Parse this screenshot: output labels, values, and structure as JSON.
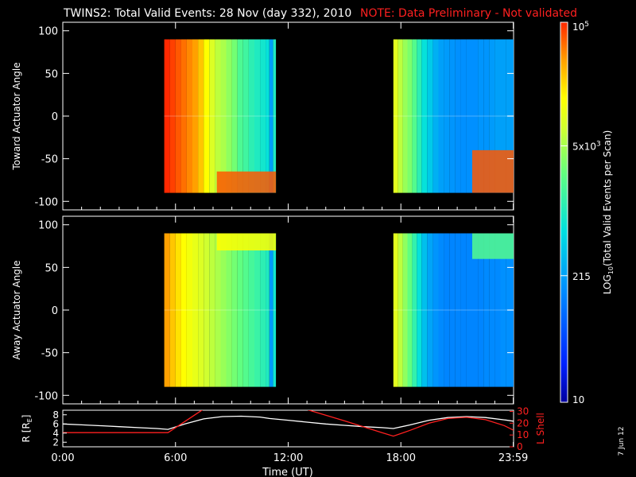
{
  "header": {
    "title": "TWINS2: Total Valid Events: 28 Nov (day 332), 2010",
    "note": "NOTE: Data Preliminary - Not validated"
  },
  "date_stamp": "7 Jun 12",
  "colors": {
    "background": "#000000",
    "axes": "#ffffff",
    "note": "#ff2020",
    "lshell": "#ff2020",
    "r_line": "#ffffff"
  },
  "chart_data": [
    {
      "type": "heatmap",
      "panel": "toward",
      "ylabel": "Toward Actuator Angle",
      "ylim": [
        -110,
        110
      ],
      "yticks": [
        100,
        50,
        0,
        -50,
        -100
      ],
      "xlim": [
        0,
        24
      ],
      "data_extent_y": [
        -90,
        90
      ],
      "blocks": [
        {
          "t_start": 5.4,
          "t_end": 11.35,
          "columns": [
            [
              5.4,
              10
            ],
            [
              5.7,
              9.8
            ],
            [
              6.0,
              9.6
            ],
            [
              6.3,
              9.4
            ],
            [
              6.6,
              9.2
            ],
            [
              6.9,
              9.0
            ],
            [
              7.2,
              8.6
            ],
            [
              7.5,
              8.0
            ],
            [
              7.8,
              7.4
            ],
            [
              8.1,
              7.0
            ],
            [
              8.4,
              6.8
            ],
            [
              8.7,
              6.5
            ],
            [
              9.0,
              6.2
            ],
            [
              9.3,
              5.7
            ],
            [
              9.6,
              5.5
            ],
            [
              9.9,
              5.2
            ],
            [
              10.2,
              5.0
            ],
            [
              10.5,
              4.8
            ],
            [
              10.8,
              4.6
            ],
            [
              11.0,
              3.3
            ],
            [
              11.2,
              5.0
            ]
          ],
          "enhancement": {
            "t_start": 8.2,
            "t_end": 11.35,
            "y_top": -65,
            "level": 9.6
          }
        },
        {
          "t_start": 17.6,
          "t_end": 24.0,
          "columns": [
            [
              17.6,
              7.5
            ],
            [
              17.85,
              7.0
            ],
            [
              18.1,
              6.6
            ],
            [
              18.35,
              6.3
            ],
            [
              18.6,
              5.8
            ],
            [
              18.85,
              5.2
            ],
            [
              19.1,
              4.6
            ],
            [
              19.4,
              4.1
            ],
            [
              19.7,
              3.6
            ],
            [
              20.0,
              3.3
            ],
            [
              20.3,
              3.2
            ],
            [
              20.6,
              3.1
            ],
            [
              20.9,
              3.0
            ],
            [
              21.2,
              3.0
            ],
            [
              21.5,
              3.0
            ],
            [
              21.8,
              3.0
            ],
            [
              22.1,
              3.1
            ],
            [
              22.4,
              3.1
            ],
            [
              22.7,
              3.2
            ],
            [
              23.0,
              3.3
            ],
            [
              23.3,
              3.3
            ],
            [
              23.6,
              3.3
            ]
          ],
          "enhancement": {
            "t_start": 21.8,
            "t_end": 24.0,
            "y_top": -40,
            "level": 9.6
          }
        }
      ]
    },
    {
      "type": "heatmap",
      "panel": "away",
      "ylabel": "Away Actuator Angle",
      "ylim": [
        -110,
        110
      ],
      "yticks": [
        100,
        50,
        0,
        -50,
        -100
      ],
      "xlim": [
        0,
        24
      ],
      "data_extent_y": [
        -90,
        90
      ],
      "blocks": [
        {
          "t_start": 5.4,
          "t_end": 11.35,
          "columns": [
            [
              5.4,
              9.0
            ],
            [
              5.7,
              8.6
            ],
            [
              6.0,
              8.3
            ],
            [
              6.3,
              8.0
            ],
            [
              6.6,
              7.8
            ],
            [
              6.9,
              7.6
            ],
            [
              7.2,
              7.4
            ],
            [
              7.5,
              7.2
            ],
            [
              7.8,
              7.0
            ],
            [
              8.1,
              6.8
            ],
            [
              8.4,
              6.6
            ],
            [
              8.7,
              6.4
            ],
            [
              9.0,
              6.2
            ],
            [
              9.3,
              6.0
            ],
            [
              9.6,
              5.8
            ],
            [
              9.9,
              5.6
            ],
            [
              10.2,
              5.4
            ],
            [
              10.5,
              5.2
            ],
            [
              10.8,
              5.0
            ],
            [
              11.0,
              3.2
            ],
            [
              11.2,
              4.8
            ]
          ],
          "enhancement": {
            "t_start": 8.2,
            "t_end": 11.35,
            "y_bottom": 70,
            "level": 8.0
          }
        },
        {
          "t_start": 17.6,
          "t_end": 24.0,
          "columns": [
            [
              17.6,
              7.5
            ],
            [
              17.85,
              7.0
            ],
            [
              18.1,
              6.5
            ],
            [
              18.35,
              6.0
            ],
            [
              18.6,
              5.3
            ],
            [
              18.85,
              4.6
            ],
            [
              19.1,
              3.9
            ],
            [
              19.4,
              3.4
            ],
            [
              19.7,
              3.1
            ],
            [
              20.0,
              2.9
            ],
            [
              20.3,
              2.8
            ],
            [
              20.6,
              2.8
            ],
            [
              20.9,
              2.8
            ],
            [
              21.2,
              2.8
            ],
            [
              21.5,
              2.8
            ],
            [
              21.8,
              2.8
            ],
            [
              22.1,
              2.8
            ],
            [
              22.4,
              2.9
            ],
            [
              22.7,
              2.9
            ],
            [
              23.0,
              2.9
            ],
            [
              23.3,
              3.0
            ],
            [
              23.6,
              3.0
            ]
          ],
          "enhancement": {
            "t_start": 21.8,
            "t_end": 24.0,
            "y_bottom": 60,
            "level": 5.8
          }
        }
      ]
    },
    {
      "type": "line",
      "panel": "orbit",
      "xlabel": "Time (UT)",
      "xticks": [
        {
          "t": 0,
          "label": "0:00"
        },
        {
          "t": 6,
          "label": "6:00"
        },
        {
          "t": 12,
          "label": "12:00"
        },
        {
          "t": 18,
          "label": "18:00"
        },
        {
          "t": 23.983,
          "label": "23:59"
        }
      ],
      "xlim": [
        0,
        24
      ],
      "left_axis": {
        "label": "R [R",
        "label_sub": "E",
        "label_end": "]",
        "ylim": [
          1,
          9
        ],
        "ticks": [
          8,
          6,
          4,
          2
        ]
      },
      "right_axis": {
        "label": "L Shell",
        "ylim": [
          0,
          31
        ],
        "ticks": [
          30,
          20,
          10,
          0
        ]
      },
      "series": [
        {
          "axis": "left",
          "color": "#ffffff",
          "x": [
            0,
            1,
            2,
            3,
            4,
            5,
            5.6,
            6.5,
            7.5,
            8.5,
            9.5,
            10.5,
            11.0,
            12,
            13,
            14,
            15,
            16,
            17,
            17.6,
            18.5,
            19.5,
            20.5,
            21.5,
            22.5,
            23.5,
            24
          ],
          "y": [
            6.0,
            5.8,
            5.6,
            5.4,
            5.2,
            5.0,
            4.8,
            6.0,
            7.1,
            7.6,
            7.7,
            7.5,
            7.2,
            6.8,
            6.4,
            6.0,
            5.7,
            5.4,
            5.2,
            5.0,
            5.8,
            6.8,
            7.4,
            7.6,
            7.4,
            6.9,
            6.6
          ]
        },
        {
          "axis": "right",
          "color": "#ff2020",
          "x": [
            0,
            2,
            4,
            5.6,
            7.5,
            12.9,
            15,
            17,
            17.6,
            18.5,
            19.5,
            20.5,
            21.5,
            22.5,
            23.5,
            24
          ],
          "y": [
            12,
            12,
            12,
            12,
            32,
            32,
            22,
            12,
            9,
            14,
            20,
            24,
            25,
            23,
            18,
            14
          ]
        }
      ]
    },
    {
      "type": "colorbar",
      "label": "LOG",
      "label_sub": "10",
      "label_end": "(Total Valid Events per Scan)",
      "levels": [
        10,
        100000
      ],
      "ticks": [
        {
          "value": 100000,
          "mantissa": "10",
          "exponent": "5"
        },
        {
          "value": 5000,
          "mantissa": "5x10",
          "exponent": "3"
        },
        {
          "value": 215,
          "mantissa": "215",
          "exponent": ""
        },
        {
          "value": 10,
          "mantissa": "10",
          "exponent": ""
        }
      ]
    }
  ]
}
